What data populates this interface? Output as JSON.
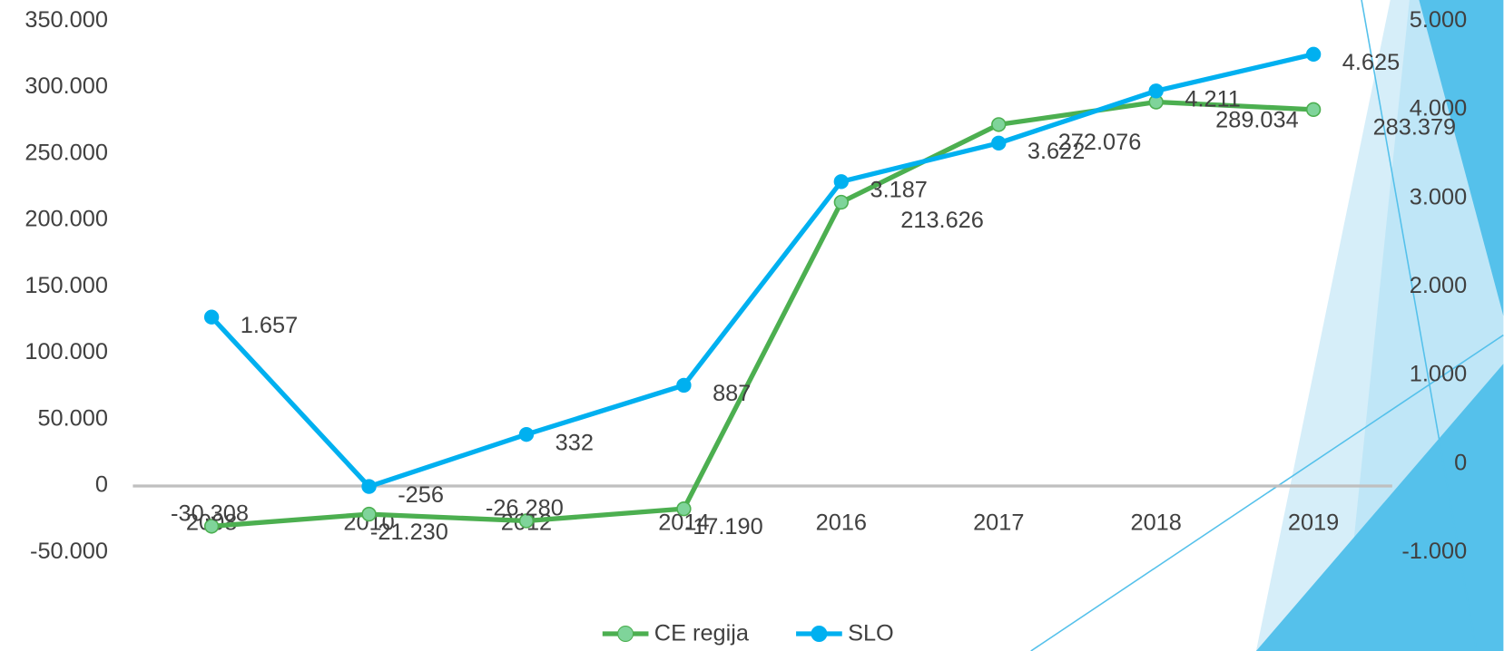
{
  "chart_data": {
    "type": "line",
    "categories": [
      "2008",
      "2010",
      "2012",
      "2014",
      "2016",
      "2017",
      "2018",
      "2019"
    ],
    "series": [
      {
        "name": "CE regija",
        "color": "#4caf50",
        "marker_color": "#7fd49a",
        "axis": "y",
        "values": [
          -30308,
          -21230,
          -26280,
          -17190,
          213626,
          272076,
          289034,
          283379
        ],
        "value_labels": [
          "-30.308",
          "-21.230",
          "-26.280",
          "-17.190",
          "213.626",
          "272.076",
          "289.034",
          "283.379"
        ]
      },
      {
        "name": "SLO",
        "color": "#00b0f0",
        "marker_color": "#00b0f0",
        "axis": "y2",
        "values": [
          1657,
          -256,
          332,
          887,
          3187,
          3622,
          4211,
          4625
        ],
        "value_labels": [
          "1.657",
          "-256",
          "332",
          "887",
          "3.187",
          "3.622",
          "4.211",
          "4.625"
        ]
      }
    ],
    "ylim": [
      -50000,
      350000
    ],
    "yticks": [
      {
        "value": -50000,
        "label": "-50.000"
      },
      0,
      {
        "value": 50000,
        "label": "50.000"
      },
      {
        "value": 100000,
        "label": "100.000"
      },
      {
        "value": 150000,
        "label": "150.000"
      },
      {
        "value": 200000,
        "label": "200.000"
      },
      {
        "value": 250000,
        "label": "250.000"
      },
      {
        "value": 300000,
        "label": "300.000"
      },
      {
        "value": 350000,
        "label": "350.000"
      }
    ],
    "y2lim": [
      -1000,
      5000
    ],
    "y2ticks": [
      {
        "value": -1000,
        "label": "-1.000"
      },
      0,
      {
        "value": 1000,
        "label": "1.000"
      },
      {
        "value": 2000,
        "label": "2.000"
      },
      {
        "value": 3000,
        "label": "3.000"
      },
      {
        "value": 4000,
        "label": "4.000"
      },
      {
        "value": 5000,
        "label": "5.000"
      }
    ],
    "legend": "bottom",
    "grid": false
  }
}
